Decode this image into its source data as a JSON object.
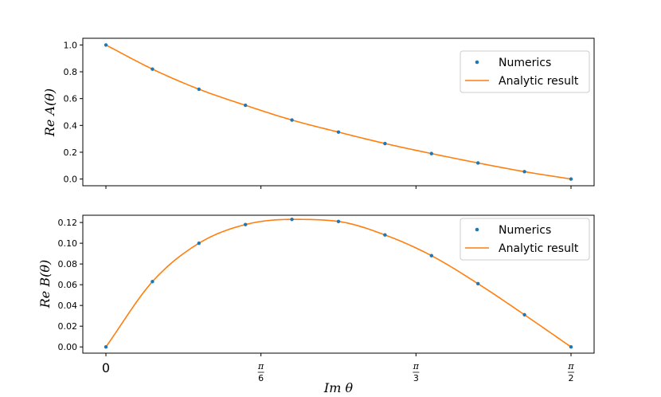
{
  "chart_data": [
    {
      "type": "line",
      "ylabel": "Re A(θ)",
      "xlabel": "",
      "xlim": [
        0,
        1.5708
      ],
      "ylim": [
        -0.05,
        1.05
      ],
      "yticks": [
        "0.0",
        "0.2",
        "0.4",
        "0.6",
        "0.8",
        "1.0"
      ],
      "ytick_values": [
        0.0,
        0.2,
        0.4,
        0.6,
        0.8,
        1.0
      ],
      "legend": {
        "placement": "top-right",
        "entries": [
          "Numerics",
          "Analytic result"
        ]
      },
      "series": [
        {
          "name": "Numerics",
          "marker": "dot",
          "color": "#1f77b4",
          "x": [
            0,
            0.1571,
            0.3142,
            0.4712,
            0.6283,
            0.7854,
            0.9425,
            1.0996,
            1.2566,
            1.4137,
            1.5708
          ],
          "y": [
            1.0,
            0.82,
            0.67,
            0.55,
            0.44,
            0.35,
            0.265,
            0.19,
            0.12,
            0.055,
            0.0
          ]
        },
        {
          "name": "Analytic result",
          "color": "#ff7f0e",
          "x": [
            0,
            0.1571,
            0.3142,
            0.4712,
            0.6283,
            0.7854,
            0.9425,
            1.0996,
            1.2566,
            1.4137,
            1.5708
          ],
          "y": [
            1.0,
            0.82,
            0.67,
            0.55,
            0.44,
            0.35,
            0.265,
            0.19,
            0.12,
            0.055,
            0.0
          ]
        }
      ]
    },
    {
      "type": "line",
      "ylabel": "Re B(θ)",
      "xlabel": "Im θ",
      "xlim": [
        0,
        1.5708
      ],
      "ylim": [
        -0.006,
        0.127
      ],
      "yticks": [
        "0.00",
        "0.02",
        "0.04",
        "0.06",
        "0.08",
        "0.10",
        "0.12"
      ],
      "ytick_values": [
        0.0,
        0.02,
        0.04,
        0.06,
        0.08,
        0.1,
        0.12
      ],
      "xticks": [
        "0",
        "π/6",
        "π/3",
        "π/2"
      ],
      "xtick_values": [
        0,
        0.5236,
        1.0472,
        1.5708
      ],
      "legend": {
        "placement": "top-right",
        "entries": [
          "Numerics",
          "Analytic result"
        ]
      },
      "series": [
        {
          "name": "Numerics",
          "marker": "dot",
          "color": "#1f77b4",
          "x": [
            0,
            0.1571,
            0.3142,
            0.4712,
            0.6283,
            0.7854,
            0.9425,
            1.0996,
            1.2566,
            1.4137,
            1.5708
          ],
          "y": [
            0.0,
            0.063,
            0.1,
            0.118,
            0.123,
            0.121,
            0.108,
            0.088,
            0.061,
            0.031,
            0.0
          ]
        },
        {
          "name": "Analytic result",
          "color": "#ff7f0e",
          "x": [
            0,
            0.1571,
            0.3142,
            0.4712,
            0.6283,
            0.7854,
            0.9425,
            1.0996,
            1.2566,
            1.4137,
            1.5708
          ],
          "y": [
            0.0,
            0.063,
            0.1,
            0.118,
            0.123,
            0.121,
            0.108,
            0.088,
            0.061,
            0.031,
            0.0
          ]
        }
      ]
    }
  ]
}
